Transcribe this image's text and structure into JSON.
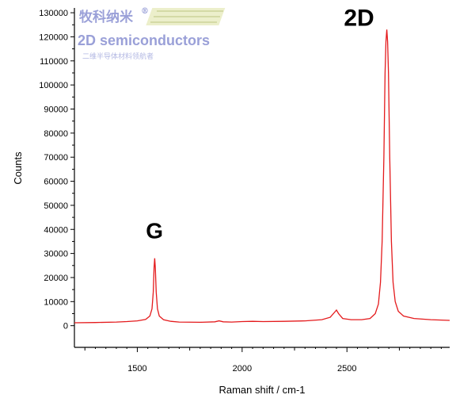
{
  "chart_data": {
    "type": "line",
    "title": "",
    "xlabel": "Raman shift / cm-1",
    "ylabel": "Counts",
    "xlim": [
      1200,
      2990
    ],
    "ylim": [
      -9000,
      132000
    ],
    "x_ticks": [
      1500,
      2000,
      2500
    ],
    "y_ticks": [
      0,
      10000,
      20000,
      30000,
      40000,
      50000,
      60000,
      70000,
      80000,
      90000,
      100000,
      110000,
      120000,
      130000
    ],
    "grid": false,
    "line_color": "#e41a1c",
    "peaks": [
      {
        "label": "G",
        "x": 1582,
        "y": 28000
      },
      {
        "label": "2D",
        "x": 2690,
        "y": 123000
      }
    ],
    "series": [
      {
        "values": [
          [
            1200,
            1200
          ],
          [
            1300,
            1300
          ],
          [
            1400,
            1500
          ],
          [
            1450,
            1700
          ],
          [
            1500,
            2000
          ],
          [
            1540,
            2600
          ],
          [
            1560,
            4000
          ],
          [
            1570,
            7000
          ],
          [
            1576,
            14000
          ],
          [
            1580,
            24000
          ],
          [
            1583,
            28000
          ],
          [
            1586,
            24000
          ],
          [
            1590,
            14000
          ],
          [
            1596,
            7000
          ],
          [
            1605,
            4000
          ],
          [
            1625,
            2500
          ],
          [
            1660,
            1800
          ],
          [
            1700,
            1500
          ],
          [
            1800,
            1400
          ],
          [
            1870,
            1600
          ],
          [
            1890,
            2000
          ],
          [
            1910,
            1600
          ],
          [
            1950,
            1500
          ],
          [
            2000,
            1700
          ],
          [
            2050,
            1800
          ],
          [
            2100,
            1700
          ],
          [
            2200,
            1800
          ],
          [
            2300,
            2000
          ],
          [
            2380,
            2500
          ],
          [
            2420,
            3500
          ],
          [
            2440,
            5500
          ],
          [
            2450,
            6500
          ],
          [
            2460,
            5000
          ],
          [
            2480,
            3000
          ],
          [
            2520,
            2500
          ],
          [
            2570,
            2500
          ],
          [
            2610,
            3000
          ],
          [
            2635,
            5000
          ],
          [
            2650,
            9000
          ],
          [
            2660,
            18000
          ],
          [
            2668,
            35000
          ],
          [
            2676,
            70000
          ],
          [
            2682,
            105000
          ],
          [
            2686,
            118000
          ],
          [
            2690,
            123000
          ],
          [
            2694,
            118000
          ],
          [
            2698,
            105000
          ],
          [
            2704,
            70000
          ],
          [
            2712,
            35000
          ],
          [
            2720,
            18000
          ],
          [
            2730,
            10000
          ],
          [
            2745,
            6000
          ],
          [
            2770,
            4000
          ],
          [
            2820,
            3000
          ],
          [
            2900,
            2500
          ],
          [
            2990,
            2200
          ]
        ]
      }
    ]
  },
  "watermark": {
    "brand_cn": "牧科纳米",
    "registered": "®",
    "brand_en": "2D semiconductors",
    "tagline_cn": "二维半导体材料领航者"
  }
}
